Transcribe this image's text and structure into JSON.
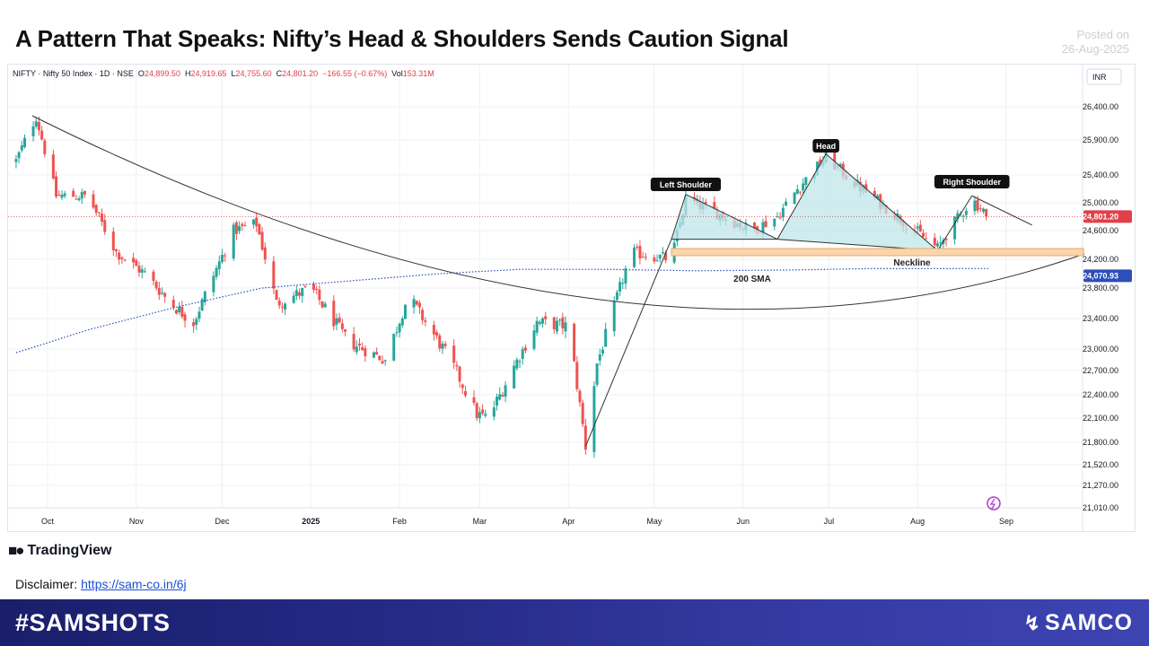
{
  "header": {
    "title": "A Pattern That Speaks: Nifty’s Head & Shoulders Sends Caution Signal",
    "posted_label": "Posted on",
    "posted_date": "26-Aug-2025"
  },
  "infobar": {
    "symbol": "NIFTY · Nifty 50 Index · 1D · NSE",
    "open_label": "O",
    "open": "24,899.50",
    "high_label": "H",
    "high": "24,919.65",
    "low_label": "L",
    "low": "24,755.60",
    "close_label": "C",
    "close": "24,801.20",
    "change": "−166.55 (−0.67%)",
    "vol_label": "Vol",
    "vol": "153.31M"
  },
  "chart_data": {
    "type": "candlestick",
    "currency": "INR",
    "y_ticks": [
      26400,
      25900,
      25400,
      25000,
      24600,
      24200,
      23800,
      23400,
      23000,
      22700,
      22400,
      22100,
      21800,
      21520,
      21270,
      21010
    ],
    "y_tick_labels": [
      "26,400.00",
      "25,900.00",
      "25,400.00",
      "25,000.00",
      "24,600.00",
      "24,200.00",
      "23,800.00",
      "23,400.00",
      "23,000.00",
      "22,700.00",
      "22,400.00",
      "22,100.00",
      "21,800.00",
      "21,520.00",
      "21,270.00",
      "21,010.00"
    ],
    "x_ticks": [
      {
        "label": "Oct",
        "date": "2024-10-01"
      },
      {
        "label": "Nov",
        "date": "2024-11-01"
      },
      {
        "label": "Dec",
        "date": "2024-12-01"
      },
      {
        "label": "2025",
        "date": "2025-01-01"
      },
      {
        "label": "Feb",
        "date": "2025-02-01"
      },
      {
        "label": "Mar",
        "date": "2025-03-01"
      },
      {
        "label": "Apr",
        "date": "2025-04-01"
      },
      {
        "label": "May",
        "date": "2025-05-01"
      },
      {
        "label": "Jun",
        "date": "2025-06-01"
      },
      {
        "label": "Jul",
        "date": "2025-07-01"
      },
      {
        "label": "Aug",
        "date": "2025-08-01"
      },
      {
        "label": "Sep",
        "date": "2025-09-01"
      }
    ],
    "price_path": [
      {
        "date": "2024-09-20",
        "value": 25600
      },
      {
        "date": "2024-09-27",
        "value": 26250
      },
      {
        "date": "2024-10-04",
        "value": 25100
      },
      {
        "date": "2024-10-15",
        "value": 25100
      },
      {
        "date": "2024-10-25",
        "value": 24300
      },
      {
        "date": "2024-11-04",
        "value": 24000
      },
      {
        "date": "2024-11-13",
        "value": 23600
      },
      {
        "date": "2024-11-21",
        "value": 23350
      },
      {
        "date": "2024-12-05",
        "value": 24600
      },
      {
        "date": "2024-12-13",
        "value": 24700
      },
      {
        "date": "2024-12-20",
        "value": 23600
      },
      {
        "date": "2025-01-01",
        "value": 23800
      },
      {
        "date": "2025-01-14",
        "value": 23100
      },
      {
        "date": "2025-01-27",
        "value": 22850
      },
      {
        "date": "2025-02-04",
        "value": 23700
      },
      {
        "date": "2025-02-18",
        "value": 22900
      },
      {
        "date": "2025-02-28",
        "value": 22150
      },
      {
        "date": "2025-03-04",
        "value": 22100
      },
      {
        "date": "2025-03-21",
        "value": 23350
      },
      {
        "date": "2025-04-01",
        "value": 23300
      },
      {
        "date": "2025-04-07",
        "value": 21750
      },
      {
        "date": "2025-04-11",
        "value": 22800
      },
      {
        "date": "2025-04-23",
        "value": 24300
      },
      {
        "date": "2025-05-07",
        "value": 24200
      },
      {
        "date": "2025-05-12",
        "value": 25050
      },
      {
        "date": "2025-05-23",
        "value": 24850
      },
      {
        "date": "2025-06-04",
        "value": 24600
      },
      {
        "date": "2025-06-13",
        "value": 24800
      },
      {
        "date": "2025-06-20",
        "value": 25200
      },
      {
        "date": "2025-06-30",
        "value": 25650
      },
      {
        "date": "2025-07-11",
        "value": 25250
      },
      {
        "date": "2025-07-25",
        "value": 24800
      },
      {
        "date": "2025-08-08",
        "value": 24350
      },
      {
        "date": "2025-08-11",
        "value": 24550
      },
      {
        "date": "2025-08-20",
        "value": 25050
      },
      {
        "date": "2025-08-26",
        "value": 24801.2
      }
    ],
    "sma200_path": [
      {
        "date": "2024-09-20",
        "value": 22950
      },
      {
        "date": "2024-10-15",
        "value": 23250
      },
      {
        "date": "2024-11-15",
        "value": 23550
      },
      {
        "date": "2024-12-15",
        "value": 23800
      },
      {
        "date": "2025-01-15",
        "value": 23900
      },
      {
        "date": "2025-02-15",
        "value": 24000
      },
      {
        "date": "2025-03-15",
        "value": 24060
      },
      {
        "date": "2025-04-15",
        "value": 24060
      },
      {
        "date": "2025-05-15",
        "value": 24040
      },
      {
        "date": "2025-06-15",
        "value": 24050
      },
      {
        "date": "2025-07-15",
        "value": 24070
      },
      {
        "date": "2025-08-26",
        "value": 24070.93
      }
    ],
    "current_price": {
      "label": "24,801.20",
      "value": 24801.2
    },
    "sma_price": {
      "label": "24,070.93",
      "value": 24070.93
    },
    "annotations": {
      "left_shoulder": "Left Shoulder",
      "head": "Head",
      "right_shoulder": "Right Shoulder",
      "neckline": "Neckline",
      "sma": "200 SMA"
    },
    "neckline_zone": {
      "start": "2025-05-07",
      "end": "2025-09-28",
      "upper": 24350,
      "lower": 24250
    },
    "colors": {
      "up": "#26a69a",
      "down": "#ef5350",
      "sma": "#2c4fb8",
      "pattern_fill": "#bfe6ea",
      "zone": "#fbd5ad",
      "zone_border": "#e8a865",
      "grid": "#eef0f3",
      "price_tag": "#e0404a",
      "sma_tag": "#2c4fb8"
    }
  },
  "branding": {
    "tradingview": "TradingView",
    "disclaimer_label": "Disclaimer:",
    "disclaimer_link": "https://sam-co.in/6j",
    "hashtag": "#SAMSHOTS",
    "brand": "SAMCO",
    "colors": {
      "footer_start": "#1a1e6b",
      "footer_end": "#3d44b3",
      "link": "#1a4fd6"
    }
  }
}
